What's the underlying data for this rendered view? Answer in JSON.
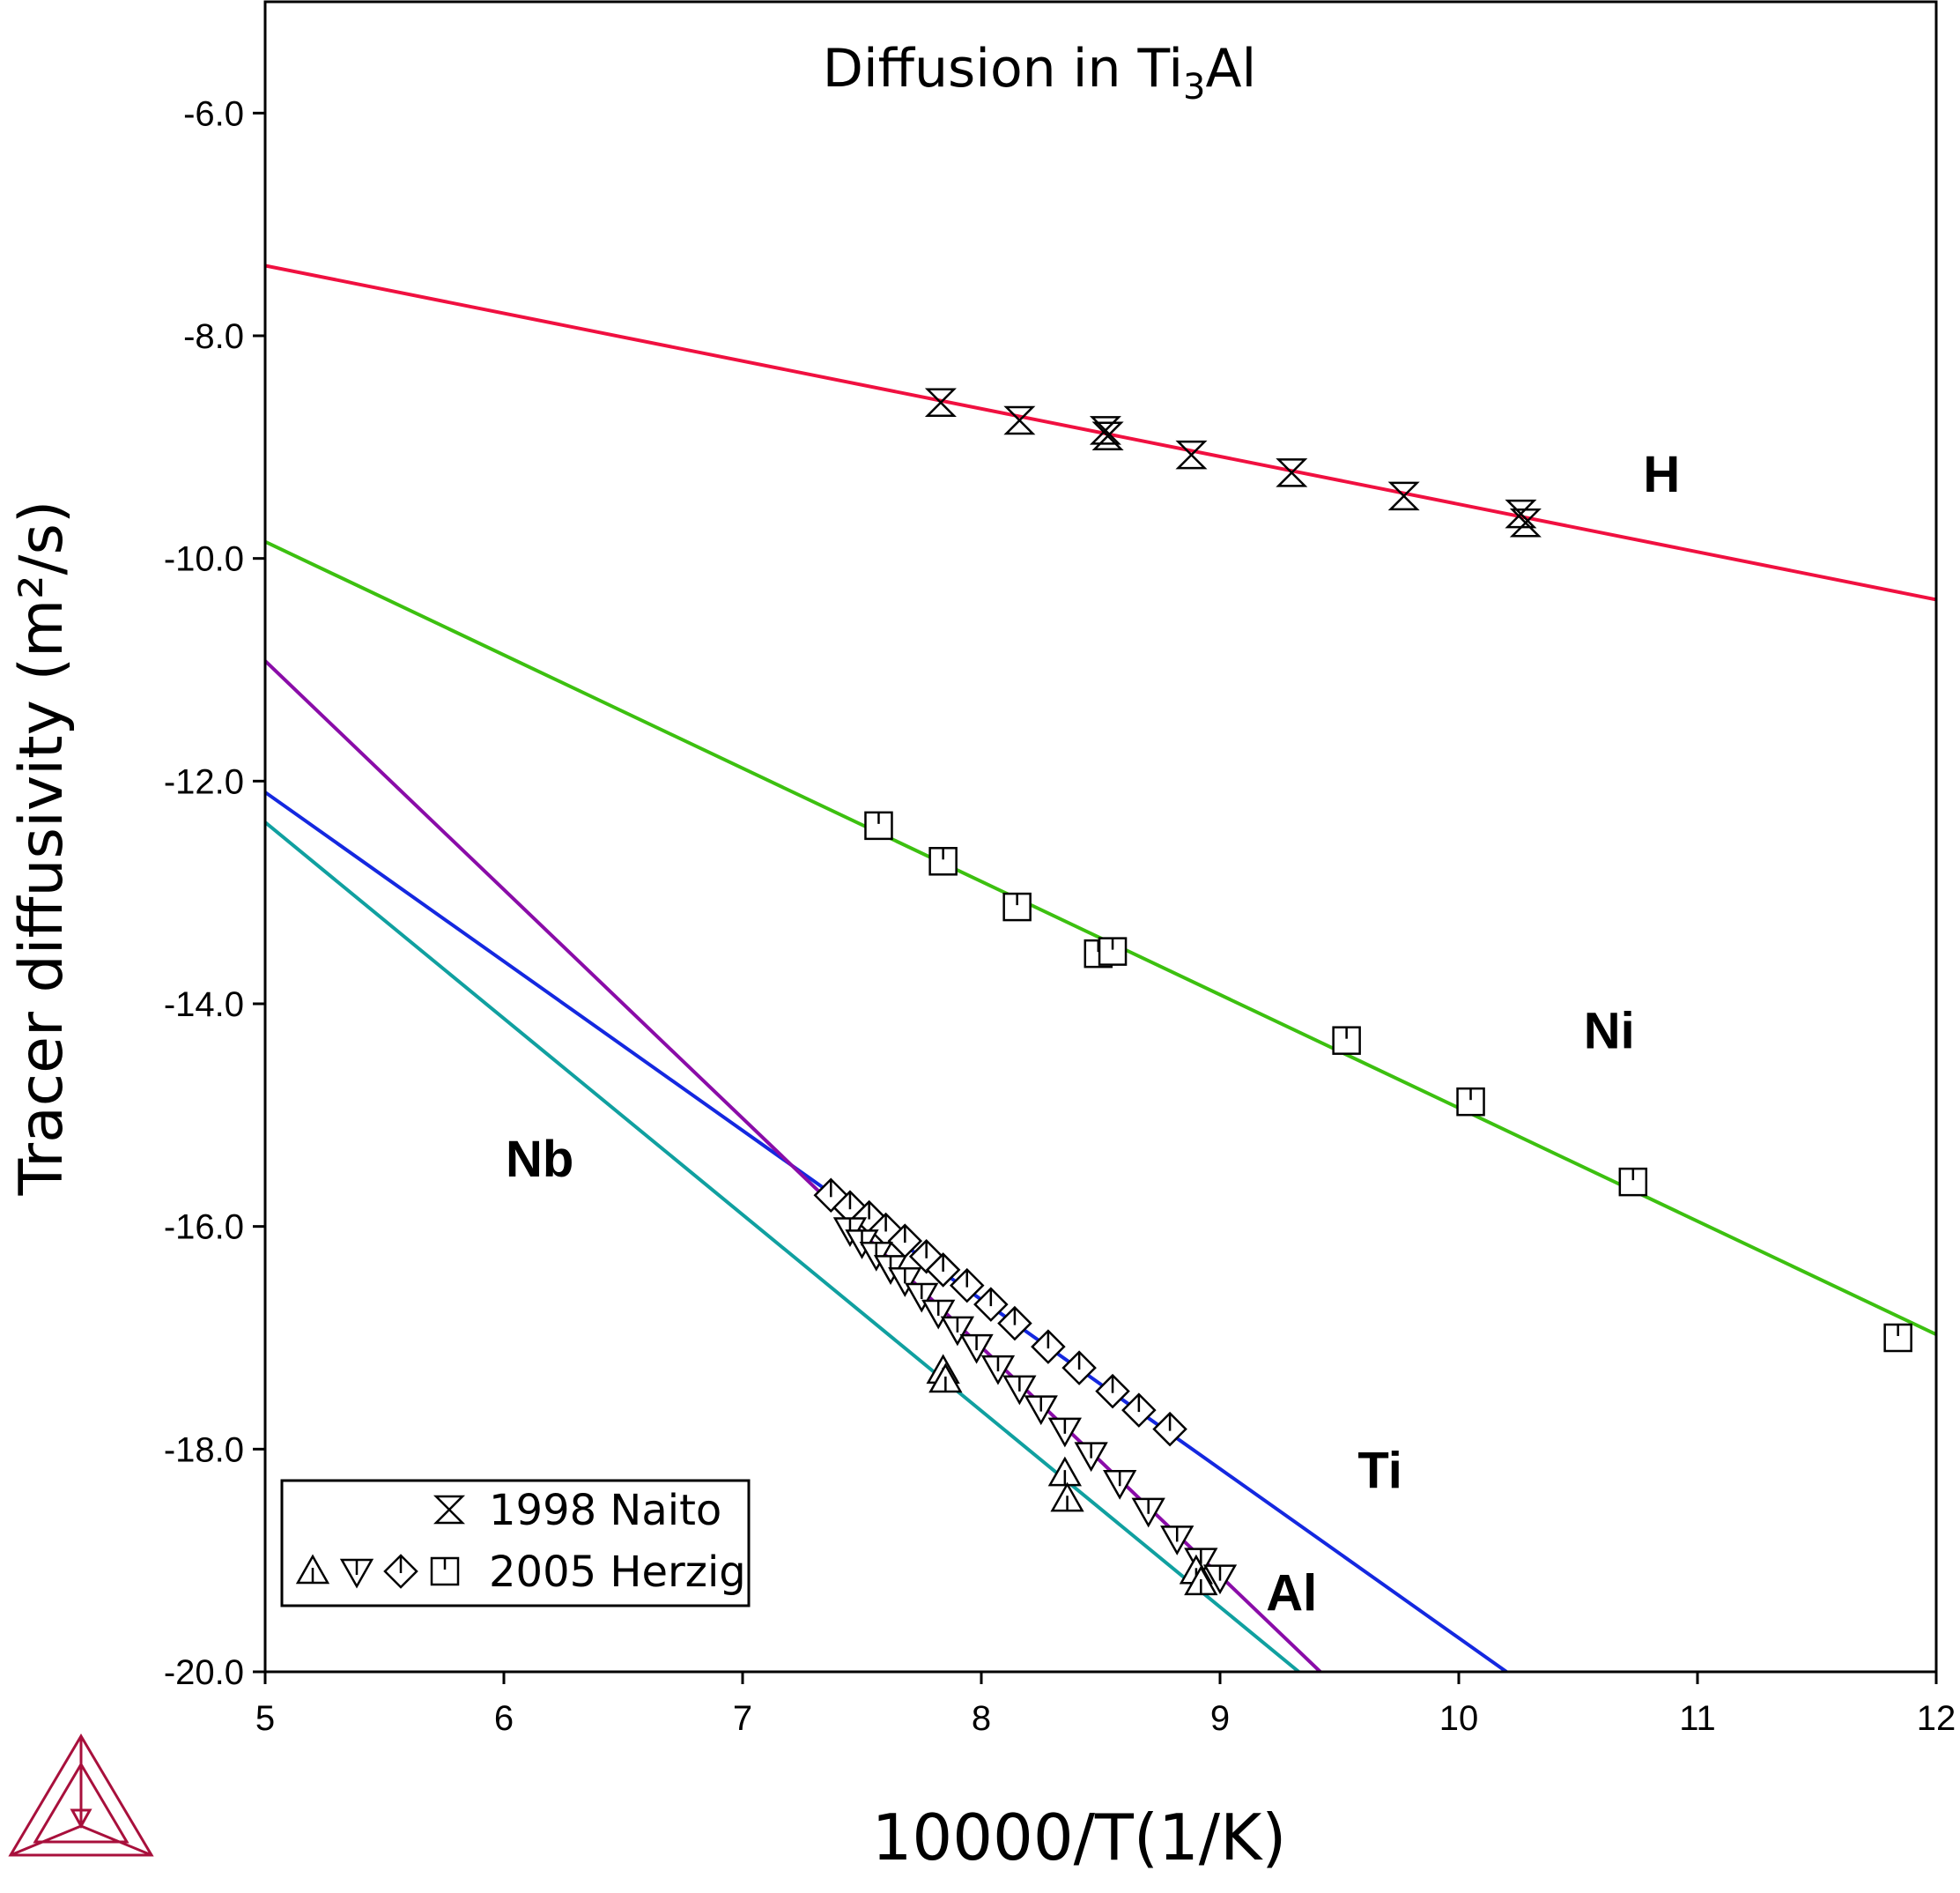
{
  "chart_data": {
    "type": "scatter",
    "title": "Diffusion in Ti",
    "title_subscript": "3",
    "title_suffix": "Al",
    "xlabel": "10000/T(1/K)",
    "ylabel": "Tracer diffusivity (m²/s)",
    "xlim": [
      5,
      12
    ],
    "ylim": [
      -20.0,
      -5.0
    ],
    "xticks": [
      5,
      6,
      7,
      8,
      9,
      10,
      11,
      12
    ],
    "yticks": [
      -6.0,
      -8.0,
      -10.0,
      -12.0,
      -14.0,
      -16.0,
      -18.0,
      -20.0
    ],
    "grid": false,
    "legend": {
      "placement": "bottom-left",
      "entries": [
        {
          "label": "1998 Naito",
          "symbols": [
            "hourglass"
          ]
        },
        {
          "label": "2005 Herzig",
          "symbols": [
            "triangle-up",
            "triangle-down",
            "diamond",
            "square"
          ]
        }
      ]
    },
    "series": [
      {
        "name": "H",
        "color": "#f01040",
        "line": [
          [
            5,
            -7.37
          ],
          [
            12,
            -10.37
          ]
        ],
        "label_at": [
          10.85,
          -9.4
        ],
        "points": {
          "symbol": "hourglass",
          "xy": [
            [
              7.83,
              -8.6
            ],
            [
              8.16,
              -8.76
            ],
            [
              8.52,
              -8.85
            ],
            [
              8.53,
              -8.9
            ],
            [
              8.88,
              -9.07
            ],
            [
              9.3,
              -9.23
            ],
            [
              9.77,
              -9.44
            ],
            [
              10.26,
              -9.6
            ],
            [
              10.28,
              -9.68
            ]
          ]
        }
      },
      {
        "name": "Ni",
        "color": "#3cc010",
        "line": [
          [
            5,
            -9.85
          ],
          [
            12,
            -16.97
          ]
        ],
        "label_at": [
          10.63,
          -14.4
        ],
        "points": {
          "symbol": "square",
          "xy": [
            [
              7.57,
              -12.4
            ],
            [
              7.84,
              -12.72
            ],
            [
              8.15,
              -13.13
            ],
            [
              8.49,
              -13.55
            ],
            [
              8.55,
              -13.53
            ],
            [
              9.53,
              -14.33
            ],
            [
              10.05,
              -14.88
            ],
            [
              10.73,
              -15.6
            ],
            [
              11.84,
              -17.0
            ]
          ]
        }
      },
      {
        "name": "Ti",
        "color": "#1428e0",
        "line": [
          [
            5,
            -12.1
          ],
          [
            10.2,
            -20.0
          ]
        ],
        "label_at": [
          9.67,
          -18.35
        ],
        "points": {
          "symbol": "diamond",
          "xy": [
            [
              7.37,
              -15.72
            ],
            [
              7.45,
              -15.83
            ],
            [
              7.53,
              -15.92
            ],
            [
              7.6,
              -16.03
            ],
            [
              7.68,
              -16.13
            ],
            [
              7.77,
              -16.27
            ],
            [
              7.84,
              -16.39
            ],
            [
              7.94,
              -16.53
            ],
            [
              8.04,
              -16.7
            ],
            [
              8.14,
              -16.87
            ],
            [
              8.28,
              -17.08
            ],
            [
              8.41,
              -17.27
            ],
            [
              8.55,
              -17.48
            ],
            [
              8.66,
              -17.65
            ],
            [
              8.79,
              -17.82
            ]
          ]
        }
      },
      {
        "name": "Al",
        "color": "#8a0ca8",
        "line": [
          [
            5,
            -10.92
          ],
          [
            9.42,
            -20.0
          ]
        ],
        "label_at": [
          9.3,
          -19.45
        ],
        "points": {
          "symbol": "triangle-down",
          "xy": [
            [
              7.45,
              -16.03
            ],
            [
              7.5,
              -16.14
            ],
            [
              7.56,
              -16.25
            ],
            [
              7.62,
              -16.37
            ],
            [
              7.68,
              -16.48
            ],
            [
              7.75,
              -16.62
            ],
            [
              7.82,
              -16.77
            ],
            [
              7.9,
              -16.92
            ],
            [
              7.98,
              -17.08
            ],
            [
              8.07,
              -17.27
            ],
            [
              8.16,
              -17.45
            ],
            [
              8.25,
              -17.63
            ],
            [
              8.35,
              -17.83
            ],
            [
              8.46,
              -18.05
            ],
            [
              8.58,
              -18.3
            ],
            [
              8.7,
              -18.55
            ],
            [
              8.82,
              -18.8
            ],
            [
              8.92,
              -19.0
            ],
            [
              9.0,
              -19.15
            ]
          ]
        }
      },
      {
        "name": "Nb",
        "color": "#10a0a0",
        "line": [
          [
            5,
            -12.37
          ],
          [
            9.33,
            -20.0
          ]
        ],
        "label_at": [
          6.15,
          -15.55
        ],
        "points": {
          "symbol": "triangle-up",
          "xy": [
            [
              7.84,
              -17.3
            ],
            [
              7.85,
              -17.38
            ],
            [
              8.35,
              -18.22
            ],
            [
              8.36,
              -18.45
            ],
            [
              8.9,
              -19.1
            ],
            [
              8.92,
              -19.2
            ]
          ]
        }
      }
    ]
  }
}
